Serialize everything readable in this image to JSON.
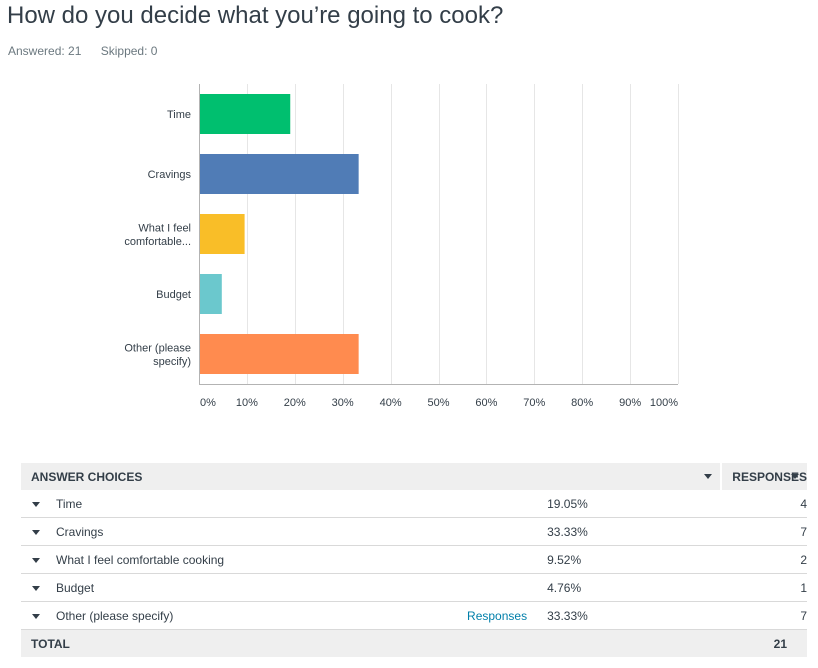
{
  "question": {
    "title": "How do you decide what you’re going to cook?",
    "answered": "Answered: 21",
    "skipped": "Skipped: 0"
  },
  "chart_data": {
    "type": "bar",
    "orientation": "horizontal",
    "categories": [
      [
        "Time"
      ],
      [
        "Cravings"
      ],
      [
        "What I feel",
        "comfortable..."
      ],
      [
        "Budget"
      ],
      [
        "Other (please",
        "specify)"
      ]
    ],
    "values": [
      19.05,
      33.33,
      9.52,
      4.76,
      33.33
    ],
    "colors": [
      "#00bf6f",
      "#507cb6",
      "#f9be28",
      "#6bc8cd",
      "#ff8b4f"
    ],
    "xticks": [
      "0%",
      "10%",
      "20%",
      "30%",
      "40%",
      "50%",
      "60%",
      "70%",
      "80%",
      "90%",
      "100%"
    ],
    "xlim": [
      0,
      100
    ],
    "grid": true
  },
  "table": {
    "header_choices": "ANSWER CHOICES",
    "header_responses": "RESPONSES",
    "rows": [
      {
        "choice": "Time",
        "percent": "19.05%",
        "count": "4",
        "link": ""
      },
      {
        "choice": "Cravings",
        "percent": "33.33%",
        "count": "7",
        "link": ""
      },
      {
        "choice": "What I feel comfortable cooking",
        "percent": "9.52%",
        "count": "2",
        "link": ""
      },
      {
        "choice": "Budget",
        "percent": "4.76%",
        "count": "1",
        "link": ""
      },
      {
        "choice": "Other (please specify)",
        "percent": "33.33%",
        "count": "7",
        "link": "Responses"
      }
    ],
    "total_label": "TOTAL",
    "total_count": "21"
  }
}
